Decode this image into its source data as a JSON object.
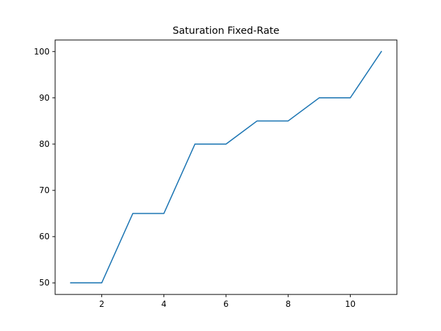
{
  "chart_data": {
    "type": "line",
    "title": "Saturation Fixed-Rate",
    "xlabel": "",
    "ylabel": "",
    "x": [
      1,
      2,
      3,
      4,
      5,
      6,
      7,
      8,
      9,
      10,
      11
    ],
    "series": [
      {
        "values": [
          50,
          50,
          65,
          65,
          80,
          80,
          85,
          85,
          90,
          90,
          100
        ],
        "color": "#1f77b4"
      }
    ],
    "xlim": [
      0.5,
      11.5
    ],
    "ylim": [
      47.5,
      102.5
    ],
    "xticks": [
      2,
      4,
      6,
      8,
      10
    ],
    "yticks": [
      50,
      60,
      70,
      80,
      90,
      100
    ],
    "grid": false,
    "legend": "none"
  }
}
